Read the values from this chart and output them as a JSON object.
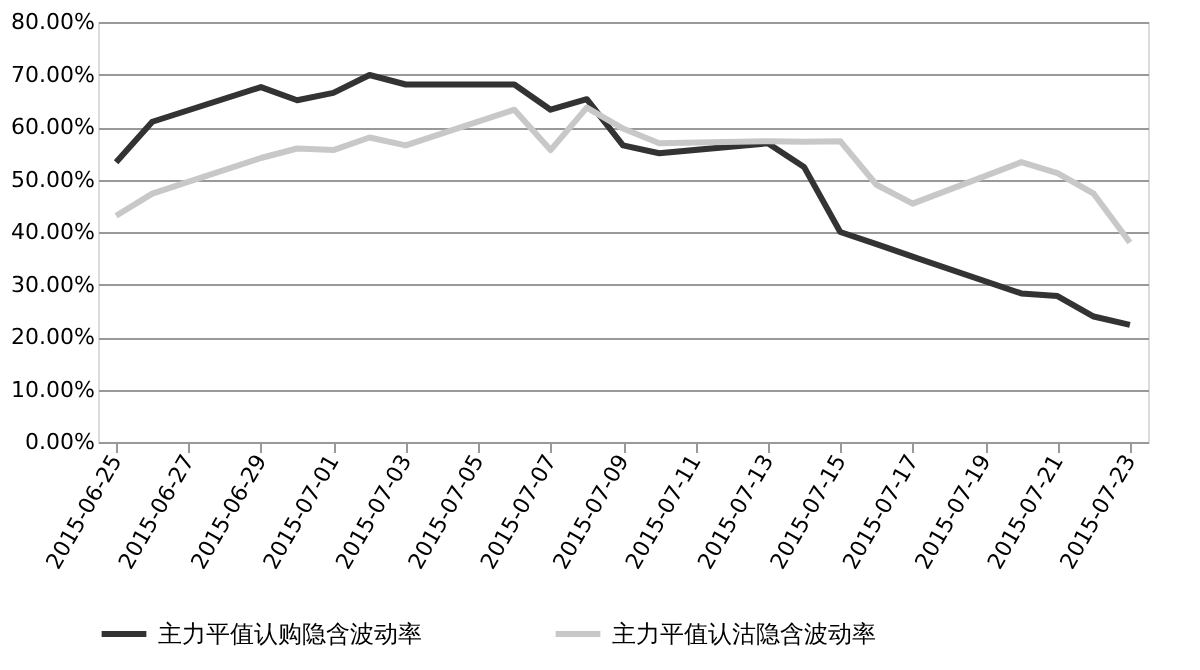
{
  "chart_data": {
    "type": "line",
    "x": [
      "2015-06-25",
      "2015-06-26",
      "2015-06-29",
      "2015-06-30",
      "2015-07-01",
      "2015-07-02",
      "2015-07-03",
      "2015-07-06",
      "2015-07-07",
      "2015-07-08",
      "2015-07-09",
      "2015-07-10",
      "2015-07-13",
      "2015-07-14",
      "2015-07-15",
      "2015-07-16",
      "2015-07-17",
      "2015-07-20",
      "2015-07-21",
      "2015-07-22",
      "2015-07-23"
    ],
    "series": [
      {
        "name": "主力平值认购隐含波动率",
        "color": "#333333",
        "values": [
          53.3,
          61.0,
          67.6,
          65.1,
          66.5,
          69.9,
          68.1,
          68.1,
          63.3,
          65.3,
          56.5,
          55.0,
          56.9,
          52.4,
          40.0,
          37.7,
          35.3,
          28.3,
          27.8,
          23.9,
          22.3
        ]
      },
      {
        "name": "主力平值认沽隐含波动率",
        "color": "#c8c8c8",
        "values": [
          43.1,
          47.3,
          54.1,
          55.9,
          55.6,
          58.0,
          56.5,
          63.3,
          55.6,
          63.7,
          59.7,
          56.9,
          57.3,
          57.2,
          57.3,
          49.0,
          45.4,
          53.3,
          51.2,
          47.3,
          38.0
        ]
      }
    ],
    "xlim": [
      "2015-06-24T12:00",
      "2015-07-23T12:00"
    ],
    "xticks": [
      "2015-06-25",
      "2015-06-27",
      "2015-06-29",
      "2015-07-01",
      "2015-07-03",
      "2015-07-05",
      "2015-07-07",
      "2015-07-09",
      "2015-07-11",
      "2015-07-13",
      "2015-07-15",
      "2015-07-17",
      "2015-07-19",
      "2015-07-21",
      "2015-07-23"
    ],
    "ylim": [
      0,
      80
    ],
    "yticks": [
      {
        "value": 0,
        "label": "0.00%"
      },
      {
        "value": 10,
        "label": "10.00%"
      },
      {
        "value": 20,
        "label": "20.00%"
      },
      {
        "value": 30,
        "label": "30.00%"
      },
      {
        "value": 40,
        "label": "40.00%"
      },
      {
        "value": 50,
        "label": "50.00%"
      },
      {
        "value": 60,
        "label": "60.00%"
      },
      {
        "value": 70,
        "label": "70.00%"
      },
      {
        "value": 80,
        "label": "80.00%"
      }
    ],
    "grid": "y",
    "legend": "bottom",
    "marker": "none",
    "line_style": "solid"
  }
}
